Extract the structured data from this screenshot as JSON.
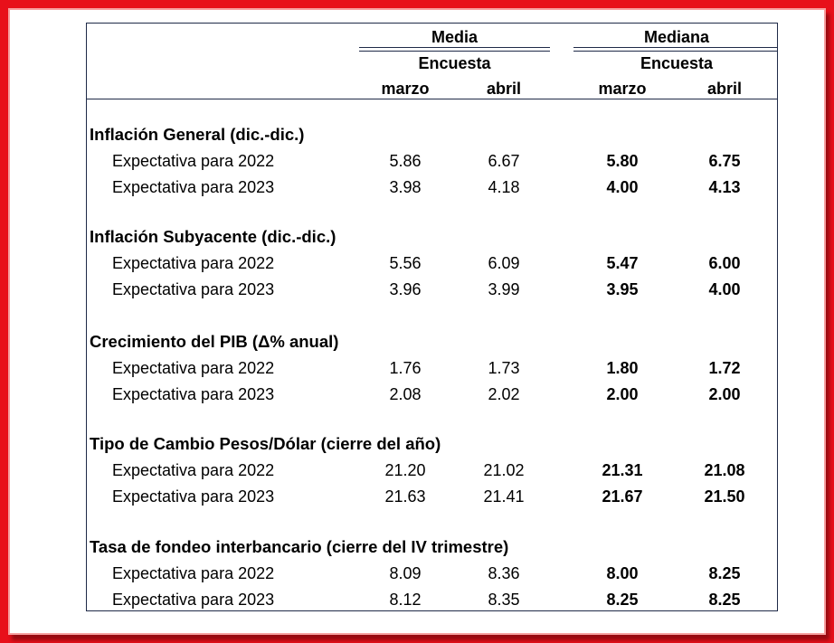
{
  "header": {
    "media": "Media",
    "mediana": "Mediana",
    "encuesta_media": "Encuesta",
    "encuesta_mediana": "Encuesta",
    "months": [
      "marzo",
      "abril",
      "marzo",
      "abril"
    ]
  },
  "sections": [
    {
      "title": "Inflación General (dic.-dic.)",
      "rows": [
        {
          "label": "Expectativa para 2022",
          "media_marzo": "5.86",
          "media_abril": "6.67",
          "mediana_marzo": "5.80",
          "mediana_abril": "6.75"
        },
        {
          "label": "Expectativa para 2023",
          "media_marzo": "3.98",
          "media_abril": "4.18",
          "mediana_marzo": "4.00",
          "mediana_abril": "4.13"
        }
      ]
    },
    {
      "title": "Inflación Subyacente (dic.-dic.)",
      "rows": [
        {
          "label": "Expectativa para 2022",
          "media_marzo": "5.56",
          "media_abril": "6.09",
          "mediana_marzo": "5.47",
          "mediana_abril": "6.00"
        },
        {
          "label": "Expectativa para 2023",
          "media_marzo": "3.96",
          "media_abril": "3.99",
          "mediana_marzo": "3.95",
          "mediana_abril": "4.00"
        }
      ]
    },
    {
      "title": "Crecimiento del PIB (Δ% anual)",
      "rows": [
        {
          "label": "Expectativa para 2022",
          "media_marzo": "1.76",
          "media_abril": "1.73",
          "mediana_marzo": "1.80",
          "mediana_abril": "1.72"
        },
        {
          "label": "Expectativa para 2023",
          "media_marzo": "2.08",
          "media_abril": "2.02",
          "mediana_marzo": "2.00",
          "mediana_abril": "2.00"
        }
      ]
    },
    {
      "title": "Tipo de Cambio Pesos/Dólar (cierre del año)",
      "rows": [
        {
          "label": "Expectativa para 2022",
          "media_marzo": "21.20",
          "media_abril": "21.02",
          "mediana_marzo": "21.31",
          "mediana_abril": "21.08"
        },
        {
          "label": "Expectativa para 2023",
          "media_marzo": "21.63",
          "media_abril": "21.41",
          "mediana_marzo": "21.67",
          "mediana_abril": "21.50"
        }
      ]
    },
    {
      "title": "Tasa de fondeo interbancario (cierre del IV trimestre)",
      "rows": [
        {
          "label": "Expectativa para 2022",
          "media_marzo": "8.09",
          "media_abril": "8.36",
          "mediana_marzo": "8.00",
          "mediana_abril": "8.25"
        },
        {
          "label": "Expectativa para 2023",
          "media_marzo": "8.12",
          "media_abril": "8.35",
          "mediana_marzo": "8.25",
          "mediana_abril": "8.25"
        }
      ]
    }
  ],
  "colors": {
    "frame": "#e8101a",
    "rules": "#1f2a48"
  }
}
